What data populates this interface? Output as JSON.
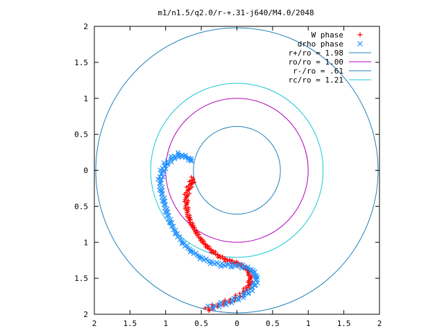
{
  "chart_data": {
    "type": "scatter",
    "title": "m1/n1.5/q2.0/r-+.31-j640/M4.0/2048",
    "xlabel": "",
    "ylabel": "",
    "xlim": [
      -2,
      2
    ],
    "ylim": [
      -2,
      2
    ],
    "x_tick_labels": [
      "2",
      "1.5",
      "1",
      "0.5",
      "0",
      "0.5",
      "1",
      "1.5",
      "2"
    ],
    "y_tick_labels": [
      "2",
      "1.5",
      "1",
      "0.5",
      "0",
      "0.5",
      "1",
      "1.5",
      "2"
    ],
    "grid": false,
    "legend_position": "top-right",
    "legend": [
      {
        "label": "W phase",
        "marker": "+",
        "color": "#ff0000"
      },
      {
        "label": "drho phase",
        "marker": "x",
        "color": "#1e90ff"
      },
      {
        "label": "r+/ro = 1.98",
        "line": true,
        "color": "#1f7fb8"
      },
      {
        "label": "ro/ro = 1.00",
        "line": true,
        "color": "#b000b8"
      },
      {
        "label": "r-/ro = .61",
        "line": true,
        "color": "#1f7fb8"
      },
      {
        "label": "rc/ro = 1.21",
        "line": true,
        "color": "#18c8d0"
      }
    ],
    "circles": [
      {
        "name": "r+/ro",
        "radius": 1.98,
        "color": "#1f7fb8"
      },
      {
        "name": "ro/ro",
        "radius": 1.0,
        "color": "#b000b8"
      },
      {
        "name": "r-/ro",
        "radius": 0.61,
        "color": "#1f7fb8"
      },
      {
        "name": "rc/ro",
        "radius": 1.21,
        "color": "#18c8d0"
      }
    ],
    "series": [
      {
        "name": "W phase",
        "color": "#ff0000",
        "marker": "+",
        "points": [
          [
            -0.61,
            -0.12
          ],
          [
            -0.64,
            -0.18
          ],
          [
            -0.68,
            -0.26
          ],
          [
            -0.71,
            -0.36
          ],
          [
            -0.71,
            -0.46
          ],
          [
            -0.7,
            -0.56
          ],
          [
            -0.67,
            -0.67
          ],
          [
            -0.62,
            -0.78
          ],
          [
            -0.56,
            -0.88
          ],
          [
            -0.49,
            -0.98
          ],
          [
            -0.42,
            -1.06
          ],
          [
            -0.34,
            -1.13
          ],
          [
            -0.24,
            -1.2
          ],
          [
            -0.14,
            -1.25
          ],
          [
            -0.04,
            -1.28
          ],
          [
            0.04,
            -1.31
          ],
          [
            0.12,
            -1.35
          ],
          [
            0.17,
            -1.41
          ],
          [
            0.19,
            -1.49
          ],
          [
            0.18,
            -1.58
          ],
          [
            0.12,
            -1.67
          ],
          [
            0.01,
            -1.76
          ],
          [
            -0.14,
            -1.83
          ],
          [
            -0.32,
            -1.89
          ],
          [
            -0.42,
            -1.94
          ]
        ]
      },
      {
        "name": "drho phase",
        "color": "#1e90ff",
        "marker": "x",
        "points": [
          [
            -0.63,
            0.13
          ],
          [
            -0.7,
            0.18
          ],
          [
            -0.8,
            0.22
          ],
          [
            -0.9,
            0.17
          ],
          [
            -1.0,
            0.08
          ],
          [
            -1.05,
            -0.02
          ],
          [
            -1.08,
            -0.15
          ],
          [
            -1.06,
            -0.3
          ],
          [
            -1.02,
            -0.45
          ],
          [
            -0.98,
            -0.6
          ],
          [
            -0.92,
            -0.75
          ],
          [
            -0.84,
            -0.9
          ],
          [
            -0.74,
            -1.03
          ],
          [
            -0.62,
            -1.14
          ],
          [
            -0.48,
            -1.23
          ],
          [
            -0.33,
            -1.29
          ],
          [
            -0.18,
            -1.32
          ],
          [
            -0.03,
            -1.32
          ],
          [
            0.11,
            -1.34
          ],
          [
            0.23,
            -1.4
          ],
          [
            0.28,
            -1.5
          ],
          [
            0.24,
            -1.61
          ],
          [
            0.13,
            -1.72
          ],
          [
            -0.02,
            -1.8
          ],
          [
            -0.2,
            -1.86
          ],
          [
            -0.38,
            -1.91
          ]
        ]
      }
    ]
  }
}
